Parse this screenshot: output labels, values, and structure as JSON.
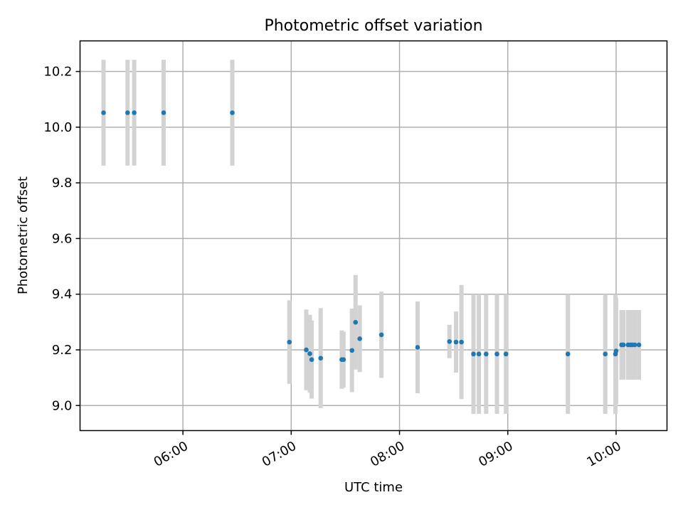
{
  "chart_data": {
    "type": "scatter",
    "title": "Photometric offset variation",
    "xlabel": "UTC time",
    "ylabel": "Photometric offset",
    "grid": true,
    "xlim_hours": [
      5.05,
      10.47
    ],
    "ylim": [
      8.91,
      10.31
    ],
    "x_ticks": [
      {
        "value": 6.0,
        "label": "06:00"
      },
      {
        "value": 7.0,
        "label": "07:00"
      },
      {
        "value": 8.0,
        "label": "08:00"
      },
      {
        "value": 9.0,
        "label": "09:00"
      },
      {
        "value": 10.0,
        "label": "10:00"
      }
    ],
    "y_ticks": [
      {
        "value": 9.0,
        "label": "9.0"
      },
      {
        "value": 9.2,
        "label": "9.2"
      },
      {
        "value": 9.4,
        "label": "9.4"
      },
      {
        "value": 9.6,
        "label": "9.6"
      },
      {
        "value": 9.8,
        "label": "9.8"
      },
      {
        "value": 10.0,
        "label": "10.0"
      },
      {
        "value": 10.2,
        "label": "10.2"
      }
    ],
    "colors": {
      "points": "#1f77b4",
      "errorbars": "#d3d3d3"
    },
    "series": [
      {
        "name": "offsets",
        "points": [
          {
            "t": 5.267,
            "y": 10.052,
            "err": 0.19
          },
          {
            "t": 5.489,
            "y": 10.052,
            "err": 0.19
          },
          {
            "t": 5.55,
            "y": 10.052,
            "err": 0.19
          },
          {
            "t": 5.822,
            "y": 10.052,
            "err": 0.19
          },
          {
            "t": 6.456,
            "y": 10.052,
            "err": 0.19
          },
          {
            "t": 6.983,
            "y": 9.228,
            "err": 0.15
          },
          {
            "t": 7.139,
            "y": 9.2,
            "err": 0.145
          },
          {
            "t": 7.172,
            "y": 9.186,
            "err": 0.14
          },
          {
            "t": 7.189,
            "y": 9.165,
            "err": 0.14
          },
          {
            "t": 7.272,
            "y": 9.17,
            "err": 0.18
          },
          {
            "t": 7.467,
            "y": 9.165,
            "err": 0.105
          },
          {
            "t": 7.483,
            "y": 9.165,
            "err": 0.1
          },
          {
            "t": 7.561,
            "y": 9.198,
            "err": 0.15
          },
          {
            "t": 7.594,
            "y": 9.299,
            "err": 0.17
          },
          {
            "t": 7.633,
            "y": 9.24,
            "err": 0.12
          },
          {
            "t": 7.833,
            "y": 9.254,
            "err": 0.155
          },
          {
            "t": 8.167,
            "y": 9.209,
            "err": 0.165
          },
          {
            "t": 8.461,
            "y": 9.23,
            "err": 0.06
          },
          {
            "t": 8.522,
            "y": 9.228,
            "err": 0.11
          },
          {
            "t": 8.572,
            "y": 9.228,
            "err": 0.205
          },
          {
            "t": 8.683,
            "y": 9.185,
            "err": 0.215
          },
          {
            "t": 8.733,
            "y": 9.185,
            "err": 0.215
          },
          {
            "t": 8.8,
            "y": 9.185,
            "err": 0.215
          },
          {
            "t": 8.9,
            "y": 9.185,
            "err": 0.215
          },
          {
            "t": 8.983,
            "y": 9.185,
            "err": 0.215
          },
          {
            "t": 9.555,
            "y": 9.185,
            "err": 0.215
          },
          {
            "t": 9.9,
            "y": 9.185,
            "err": 0.215
          },
          {
            "t": 9.994,
            "y": 9.185,
            "err": 0.215
          },
          {
            "t": 10.0,
            "y": 9.196,
            "err": 0.19
          },
          {
            "t": 10.05,
            "y": 9.218,
            "err": 0.125
          },
          {
            "t": 10.067,
            "y": 9.218,
            "err": 0.125
          },
          {
            "t": 10.111,
            "y": 9.218,
            "err": 0.125
          },
          {
            "t": 10.133,
            "y": 9.218,
            "err": 0.125
          },
          {
            "t": 10.15,
            "y": 9.218,
            "err": 0.125
          },
          {
            "t": 10.172,
            "y": 9.218,
            "err": 0.125
          },
          {
            "t": 10.211,
            "y": 9.218,
            "err": 0.125
          }
        ]
      }
    ]
  }
}
